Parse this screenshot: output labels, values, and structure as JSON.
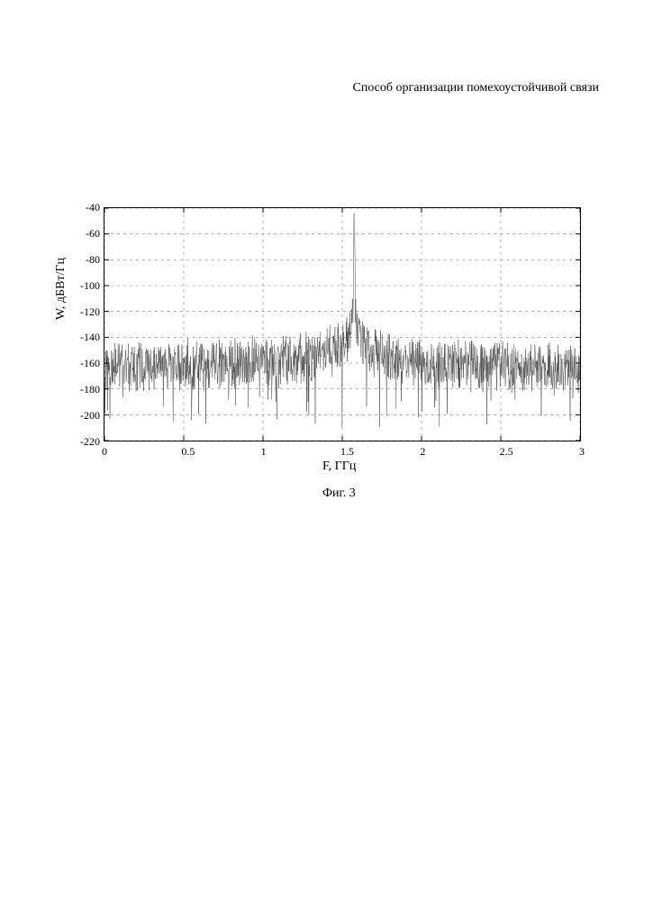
{
  "title": "Способ организации помехоустойчивой связи",
  "figure_caption": "Фиг. 3",
  "chart": {
    "type": "line-spectrum",
    "xlabel": "F, ГГц",
    "ylabel": "W, дБВт/Гц",
    "xlim": [
      0,
      3
    ],
    "ylim": [
      -220,
      -40
    ],
    "xticks": [
      0,
      0.5,
      1,
      1.5,
      2,
      2.5,
      3
    ],
    "yticks": [
      -40,
      -60,
      -80,
      -100,
      -120,
      -140,
      -160,
      -180,
      -200,
      -220
    ],
    "grid_color": "#808080",
    "grid_dash": "3,4",
    "axis_color": "#000000",
    "line_color": "#4a4a4a",
    "line_width": 0.5,
    "background_color": "#ffffff",
    "axis_fontsize": 12,
    "label_fontsize": 14,
    "peak_frequency": 1.575,
    "peak_value": -44,
    "noise_floor_center": -160,
    "noise_jitter_amplitude": 22,
    "noise_spike_min": -210,
    "shoulder_rise": 30,
    "random_seed": 42
  }
}
